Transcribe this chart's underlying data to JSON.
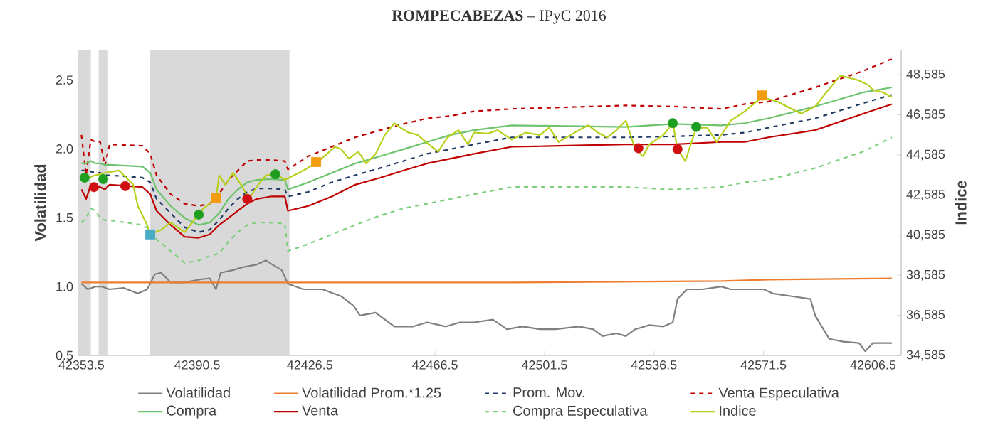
{
  "chart_data": {
    "type": "line",
    "title": "**ROMPECABEZAS** – IPyC 2016",
    "ylabel": "Volatilidad",
    "y2label": "Indice",
    "xlim": [
      42352.5,
      42615.5
    ],
    "xticks": [
      42353.5,
      42390.5,
      42426.5,
      42466.5,
      42501.5,
      42536.5,
      42571.5,
      42606.5
    ],
    "ylim": [
      0.5,
      2.72
    ],
    "yticks": [
      0.5,
      {
        "value": 1,
        "label": "1.0"
      },
      1.5,
      {
        "value": 2,
        "label": "2.0"
      },
      2.5
    ],
    "y2lim": [
      34585,
      49830
    ],
    "y2ticks": [
      {
        "value": 34585,
        "label": "34,585"
      },
      {
        "value": 36585,
        "label": "36,585"
      },
      {
        "value": 38585,
        "label": "38,585"
      },
      {
        "value": 40585,
        "label": "40,585"
      },
      {
        "value": 42585,
        "label": "42,585"
      },
      {
        "value": 44585,
        "label": "44,585"
      },
      {
        "value": 46585,
        "label": "46,585"
      },
      {
        "value": 48585,
        "label": "48,585"
      }
    ],
    "legend": "bottom",
    "bands": [
      {
        "axis": "x",
        "from": 42352.5,
        "to": 42356.5,
        "color": "#d9d9d9"
      },
      {
        "axis": "x",
        "from": 42359,
        "to": 42362,
        "color": "#d9d9d9"
      },
      {
        "axis": "x",
        "from": 42375.5,
        "to": 42420,
        "color": "#d9d9d9"
      }
    ],
    "x": [
      42353.5,
      42355,
      42356.5,
      42358,
      42359.5,
      42361,
      42362.5,
      42373,
      42375.5,
      42377.5,
      42382,
      42386.5,
      42391,
      42394.5,
      42397.5,
      42400.5,
      42403.5,
      42406.5,
      42409.5,
      42414,
      42418.5,
      42419.5,
      42426,
      42433.5,
      42441,
      42449,
      42456.5,
      42464,
      42471.5,
      42479,
      42491,
      42527.5,
      42542.5,
      42558,
      42565.5,
      42573,
      42588,
      42603.5,
      42612.5
    ],
    "series": [
      {
        "name": "Volatilidad",
        "color": "#7f7f7f",
        "line_style": "solid",
        "x": [
          42353.5,
          42355.5,
          42358,
          42360,
          42362.5,
          42367,
          42371.5,
          42374.5,
          42377,
          42379,
          42382,
          42386.5,
          42391,
          42394.5,
          42396.5,
          42398,
          42402,
          42405,
          42409.5,
          42412.5,
          42414.5,
          42417.5,
          42419.5,
          42424.5,
          42430.5,
          42436.5,
          42440.5,
          42442.5,
          42447.5,
          42450.5,
          42453.5,
          42459.5,
          42464,
          42470,
          42474.5,
          42479,
          42485,
          42489.5,
          42494.5,
          42500,
          42505,
          42512.5,
          42517,
          42520,
          42524.5,
          42527.5,
          42530.5,
          42535,
          42539.5,
          42542.5,
          42544,
          42547,
          42552,
          42558,
          42561,
          42567,
          42571.5,
          42574.5,
          42580.5,
          42586.5,
          42588,
          42592.5,
          42597,
          42602,
          42604,
          42606.5,
          42612.5
        ],
        "values": [
          1.02,
          0.98,
          1.0,
          1.0,
          0.98,
          0.99,
          0.95,
          0.98,
          1.09,
          1.1,
          1.03,
          1.03,
          1.05,
          1.06,
          0.98,
          1.1,
          1.12,
          1.14,
          1.16,
          1.19,
          1.16,
          1.12,
          1.02,
          0.98,
          0.98,
          0.93,
          0.86,
          0.79,
          0.81,
          0.76,
          0.71,
          0.71,
          0.74,
          0.71,
          0.74,
          0.74,
          0.76,
          0.69,
          0.71,
          0.69,
          0.69,
          0.71,
          0.69,
          0.64,
          0.66,
          0.64,
          0.69,
          0.72,
          0.71,
          0.74,
          0.91,
          0.98,
          0.98,
          1.0,
          0.98,
          0.98,
          0.98,
          0.95,
          0.93,
          0.91,
          0.79,
          0.62,
          0.6,
          0.59,
          0.53,
          0.59,
          0.59
        ]
      },
      {
        "name": "Volatilidad Prom.*1.25",
        "color": "#ed7d31",
        "line_style": "solid",
        "x": [
          42353.5,
          42491,
          42558,
          42573,
          42612.5
        ],
        "values": [
          1.03,
          1.03,
          1.04,
          1.05,
          1.06
        ]
      },
      {
        "name": "Prom. Mov.",
        "color": "#1f3864",
        "line_style": "dashed",
        "axis": "y2",
        "values": [
          43810,
          43810,
          43750,
          43690,
          43690,
          43570,
          43570,
          43450,
          43220,
          42390,
          41680,
          40970,
          40730,
          40850,
          41330,
          41920,
          42390,
          42740,
          42910,
          42910,
          42860,
          42510,
          42740,
          43220,
          43570,
          43930,
          44280,
          44640,
          44870,
          45110,
          45460,
          45460,
          45510,
          45580,
          45700,
          45940,
          46410,
          47170,
          47590
        ]
      },
      {
        "name": "Venta Especulativa",
        "color": "#c00000",
        "line_style": "dashed",
        "axis": "y2",
        "values": [
          45580,
          43570,
          45350,
          45230,
          45230,
          44050,
          45110,
          45040,
          44640,
          43570,
          42630,
          42150,
          42040,
          42150,
          42630,
          43340,
          43810,
          44280,
          44330,
          44330,
          44280,
          43860,
          44520,
          44990,
          45460,
          45820,
          46130,
          46410,
          46530,
          46760,
          46880,
          47050,
          47000,
          46880,
          47120,
          47240,
          47950,
          48780,
          49370
        ]
      },
      {
        "name": "Compra",
        "color": "#6cc36c",
        "line_style": "solid",
        "axis": "y2",
        "values": [
          44160,
          44160,
          44280,
          44160,
          44160,
          44090,
          44090,
          44000,
          43690,
          42860,
          42040,
          41440,
          41090,
          41210,
          41680,
          42390,
          42860,
          43220,
          43340,
          43380,
          43340,
          42860,
          43220,
          43690,
          44160,
          44520,
          44870,
          45230,
          45580,
          45820,
          46060,
          45980,
          46130,
          46060,
          46170,
          46410,
          47000,
          47710,
          47950
        ]
      },
      {
        "name": "Venta",
        "color": "#c00000",
        "line_style": "solid",
        "axis": "y2",
        "values": [
          42860,
          42390,
          43100,
          42980,
          42980,
          42860,
          43100,
          42980,
          42630,
          41800,
          41090,
          40500,
          40450,
          40620,
          41090,
          41440,
          41800,
          42150,
          42390,
          42510,
          42510,
          41800,
          42040,
          42510,
          43100,
          43450,
          43810,
          44160,
          44400,
          44640,
          44990,
          45110,
          45110,
          45230,
          45230,
          45460,
          45820,
          46650,
          47120
        ]
      },
      {
        "name": "Compra Especulativa",
        "color": "#7ccf7c",
        "line_style": "dashed",
        "axis": "y2",
        "values": [
          41210,
          41440,
          41920,
          41800,
          41440,
          41330,
          41330,
          41090,
          40850,
          40380,
          39790,
          39200,
          39320,
          39550,
          39670,
          40260,
          40730,
          41090,
          41210,
          41210,
          41160,
          39790,
          40140,
          40620,
          41090,
          41560,
          41920,
          42150,
          42390,
          42630,
          42980,
          42980,
          42860,
          42980,
          43220,
          43340,
          43930,
          44760,
          45460
        ]
      },
      {
        "name": "Indice",
        "color": "#b8cf1a",
        "line_style": "solid",
        "axis": "y2",
        "x": [
          42353.5,
          42358,
          42361,
          42365.5,
          42370,
          42371.5,
          42374.5,
          42375.5,
          42379,
          42382,
          42386.5,
          42389.5,
          42392.5,
          42396.5,
          42397.5,
          42399.5,
          42402,
          42405,
          42407,
          42410,
          42412.5,
          42416,
          42418.5,
          42421.5,
          42424.5,
          42429,
          42432,
          42434.5,
          42436.5,
          42439,
          42442,
          42444.5,
          42447.5,
          42450.5,
          42453.5,
          42455.5,
          42458,
          42461,
          42464.5,
          42467.5,
          42470.5,
          42474,
          42477,
          42479,
          42483.5,
          42486.5,
          42491,
          42495.5,
          42500,
          42503,
          42506,
          42512.5,
          42515.5,
          42518.5,
          42521.5,
          42524.5,
          42527.5,
          42530.5,
          42533,
          42535,
          42539.5,
          42542.5,
          42544,
          42546.5,
          42549,
          42550,
          42553.5,
          42556.5,
          42561,
          42565.5,
          42571,
          42576,
          42580.5,
          42583.5,
          42588,
          42591,
          42596,
          42599,
          42602,
          42605,
          42606.5,
          42609.5,
          42612.5
        ],
        "values": [
          43340,
          43570,
          43690,
          43810,
          43100,
          42040,
          41090,
          40620,
          40850,
          41210,
          40730,
          41330,
          41920,
          42390,
          43570,
          43100,
          43690,
          42980,
          42390,
          43100,
          43570,
          43620,
          43340,
          43570,
          43810,
          44230,
          44640,
          44990,
          44870,
          44400,
          44750,
          44160,
          44640,
          45580,
          46170,
          45940,
          45700,
          45580,
          45110,
          44750,
          45460,
          45820,
          45110,
          45700,
          45650,
          45820,
          45350,
          45700,
          45580,
          45940,
          45230,
          45820,
          46060,
          45700,
          45460,
          45820,
          46290,
          44870,
          44520,
          45110,
          45580,
          46170,
          44870,
          44280,
          45460,
          45940,
          45940,
          45230,
          46290,
          46760,
          47470,
          47240,
          46880,
          46650,
          47000,
          47590,
          48540,
          48420,
          48300,
          48070,
          47830,
          47710,
          47470
        ]
      },
      {
        "type": "scatter",
        "marker": "circle",
        "color": "#1e9e1e",
        "axis": "y2",
        "x": [
          42354.5,
          42360.5,
          42391,
          42415.5,
          42542.5,
          42550
        ],
        "values": [
          43450,
          43380,
          41610,
          43620,
          46170,
          45980
        ]
      },
      {
        "type": "scatter",
        "marker": "circle",
        "color": "#d01010",
        "axis": "y2",
        "x": [
          42357.5,
          42367.5,
          42406.5,
          42531.5,
          42544
        ],
        "values": [
          42980,
          43030,
          42390,
          44920,
          44870
        ]
      },
      {
        "type": "scatter",
        "marker": "square",
        "color": "#f39c12",
        "axis": "y2",
        "x": [
          42396.5,
          42428.5,
          42571
        ],
        "values": [
          42440,
          44230,
          47550
        ]
      },
      {
        "type": "scatter",
        "marker": "square",
        "color": "#4bacc6",
        "axis": "y2",
        "x": [
          42375.5
        ],
        "values": [
          40620
        ]
      }
    ]
  }
}
